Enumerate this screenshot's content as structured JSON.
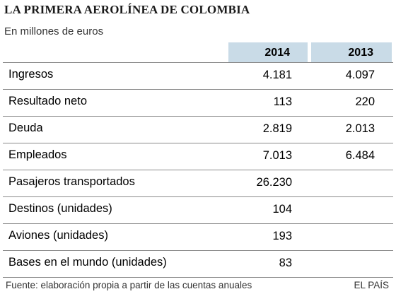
{
  "chart_data": {
    "type": "table",
    "title": "LA PRIMERA AEROLÍNEA DE COLOMBIA",
    "subtitle": "En millones de euros",
    "columns": [
      "2014",
      "2013"
    ],
    "rows": [
      {
        "label": "Ingresos",
        "values": [
          "4.181",
          "4.097"
        ]
      },
      {
        "label": "Resultado neto",
        "values": [
          "113",
          "220"
        ]
      },
      {
        "label": "Deuda",
        "values": [
          "2.819",
          "2.013"
        ]
      },
      {
        "label": "Empleados",
        "values": [
          "7.013",
          "6.484"
        ]
      },
      {
        "label": "Pasajeros transportados",
        "values": [
          "26.230",
          ""
        ]
      },
      {
        "label": "Destinos (unidades)",
        "values": [
          "104",
          ""
        ]
      },
      {
        "label": "Aviones (unidades)",
        "values": [
          "193",
          ""
        ]
      },
      {
        "label": "Bases en el mundo (unidades)",
        "values": [
          "83",
          ""
        ]
      }
    ],
    "source": "Fuente:  elaboración propia a partir de las cuentas anuales",
    "brand": "EL PAÍS"
  },
  "colors": {
    "header_band": "#c9dbe7",
    "rule": "#8a8a8a"
  }
}
